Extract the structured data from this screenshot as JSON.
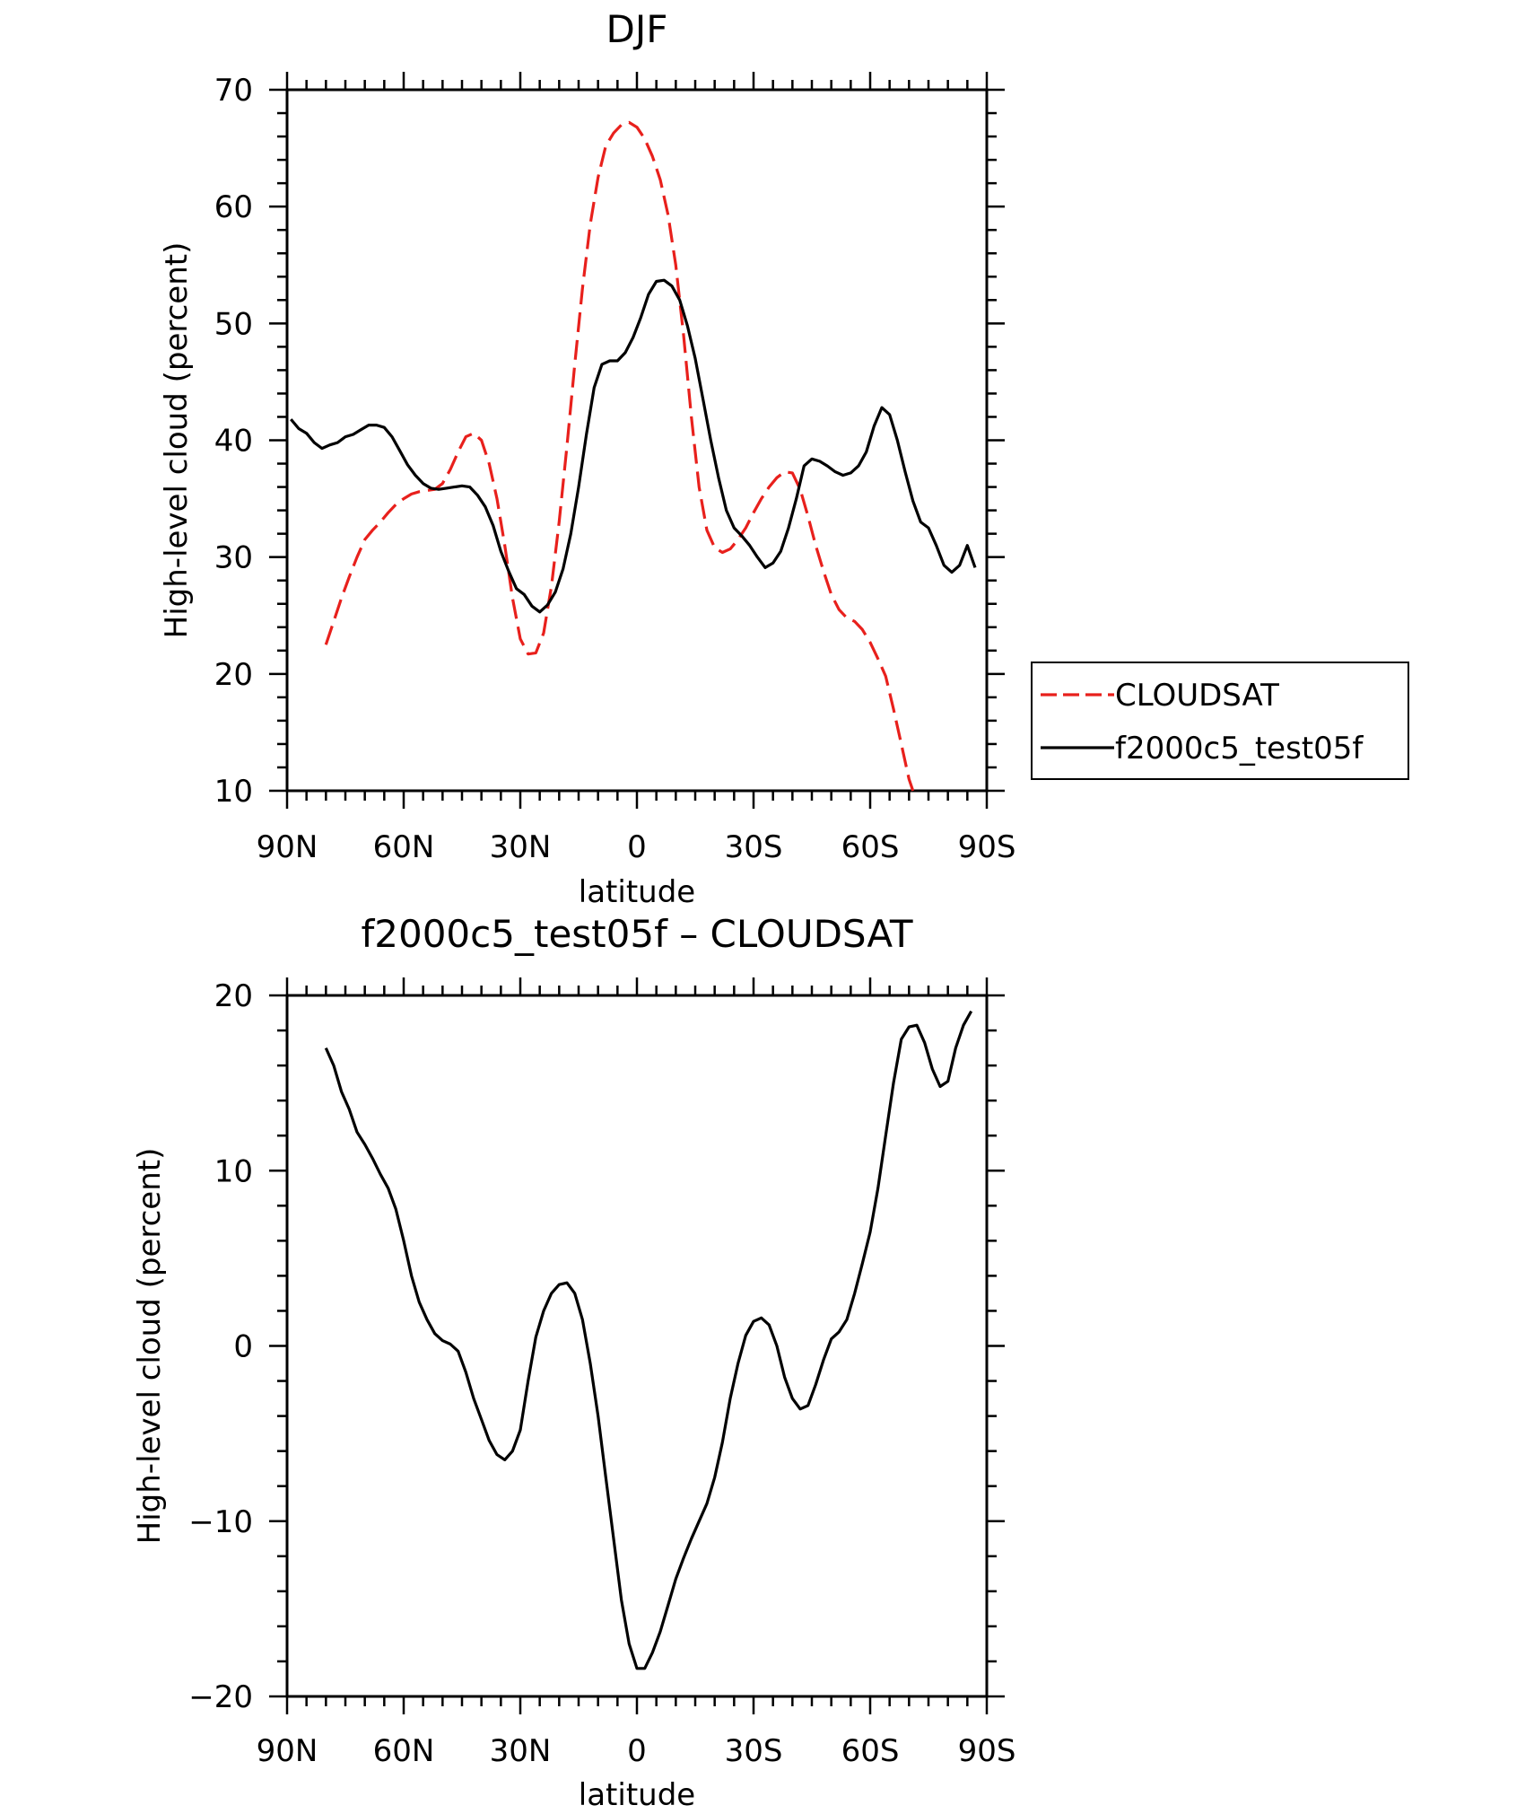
{
  "chart_data": [
    {
      "type": "line",
      "title": "DJF",
      "xlabel": "latitude",
      "ylabel": "High-level cloud (percent)",
      "xlim": [
        -90,
        90
      ],
      "ylim": [
        10,
        70
      ],
      "x_ticks": [
        {
          "value": -90,
          "label": "90N"
        },
        {
          "value": -60,
          "label": "60N"
        },
        {
          "value": -30,
          "label": "30N"
        },
        {
          "value": 0,
          "label": "0"
        },
        {
          "value": 30,
          "label": "30S"
        },
        {
          "value": 60,
          "label": "60S"
        },
        {
          "value": 90,
          "label": "90S"
        }
      ],
      "y_ticks": [
        10,
        20,
        30,
        40,
        50,
        60,
        70
      ],
      "legend": {
        "placement": "right"
      },
      "series": [
        {
          "name": "CLOUDSAT",
          "color": "#e8201c",
          "dash": "dashed",
          "points": [
            [
              -80,
              22.5
            ],
            [
              -78,
              24.5
            ],
            [
              -76,
              26.5
            ],
            [
              -74,
              28.3
            ],
            [
              -72,
              30
            ],
            [
              -70,
              31.5
            ],
            [
              -68,
              32.3
            ],
            [
              -66,
              33
            ],
            [
              -64,
              33.8
            ],
            [
              -62,
              34.5
            ],
            [
              -60,
              35
            ],
            [
              -58,
              35.4
            ],
            [
              -56,
              35.6
            ],
            [
              -54,
              35.7
            ],
            [
              -52,
              35.8
            ],
            [
              -50,
              36.3
            ],
            [
              -48,
              37.5
            ],
            [
              -46,
              39
            ],
            [
              -44,
              40.3
            ],
            [
              -42,
              40.6
            ],
            [
              -40,
              40
            ],
            [
              -38,
              38
            ],
            [
              -36,
              35
            ],
            [
              -34,
              31
            ],
            [
              -32,
              26.5
            ],
            [
              -30,
              23
            ],
            [
              -28,
              21.7
            ],
            [
              -26,
              21.8
            ],
            [
              -24,
              23.5
            ],
            [
              -22,
              27.5
            ],
            [
              -20,
              33
            ],
            [
              -18,
              39.5
            ],
            [
              -16,
              46.5
            ],
            [
              -14,
              53
            ],
            [
              -12,
              58.5
            ],
            [
              -10,
              62.5
            ],
            [
              -8,
              65.2
            ],
            [
              -6,
              66.3
            ],
            [
              -4,
              67
            ],
            [
              -2,
              67.2
            ],
            [
              0,
              66.8
            ],
            [
              2,
              65.8
            ],
            [
              4,
              64.3
            ],
            [
              6,
              62.3
            ],
            [
              8,
              59.3
            ],
            [
              10,
              55
            ],
            [
              12,
              49
            ],
            [
              14,
              42
            ],
            [
              16,
              36
            ],
            [
              18,
              32.3
            ],
            [
              20,
              30.8
            ],
            [
              22,
              30.4
            ],
            [
              24,
              30.7
            ],
            [
              26,
              31.5
            ],
            [
              28,
              32.5
            ],
            [
              30,
              33.8
            ],
            [
              32,
              35
            ],
            [
              34,
              36
            ],
            [
              36,
              36.8
            ],
            [
              38,
              37.3
            ],
            [
              40,
              37.2
            ],
            [
              42,
              35.8
            ],
            [
              44,
              33.5
            ],
            [
              46,
              31
            ],
            [
              48,
              28.8
            ],
            [
              50,
              26.8
            ],
            [
              52,
              25.5
            ],
            [
              54,
              24.8
            ],
            [
              56,
              24.5
            ],
            [
              58,
              23.8
            ],
            [
              60,
              22.7
            ],
            [
              62,
              21.3
            ],
            [
              64,
              19.8
            ],
            [
              66,
              17
            ],
            [
              68,
              14
            ],
            [
              70,
              11
            ],
            [
              71,
              10
            ]
          ]
        },
        {
          "name": "f2000c5_test05f",
          "color": "#000000",
          "dash": "solid",
          "points": [
            [
              -89,
              41.8
            ],
            [
              -87,
              41
            ],
            [
              -85,
              40.6
            ],
            [
              -83,
              39.8
            ],
            [
              -81,
              39.3
            ],
            [
              -79,
              39.6
            ],
            [
              -77,
              39.8
            ],
            [
              -75,
              40.3
            ],
            [
              -73,
              40.5
            ],
            [
              -71,
              40.9
            ],
            [
              -69,
              41.3
            ],
            [
              -67,
              41.3
            ],
            [
              -65,
              41.1
            ],
            [
              -63,
              40.3
            ],
            [
              -61,
              39.1
            ],
            [
              -59,
              37.9
            ],
            [
              -57,
              37
            ],
            [
              -55,
              36.3
            ],
            [
              -53,
              35.9
            ],
            [
              -51,
              35.8
            ],
            [
              -49,
              35.9
            ],
            [
              -47,
              36
            ],
            [
              -45,
              36.1
            ],
            [
              -43,
              36
            ],
            [
              -41,
              35.3
            ],
            [
              -39,
              34.3
            ],
            [
              -37,
              32.7
            ],
            [
              -35,
              30.5
            ],
            [
              -33,
              28.8
            ],
            [
              -31,
              27.3
            ],
            [
              -29,
              26.8
            ],
            [
              -27,
              25.8
            ],
            [
              -25,
              25.3
            ],
            [
              -23,
              25.9
            ],
            [
              -21,
              27
            ],
            [
              -19,
              29
            ],
            [
              -17,
              32
            ],
            [
              -15,
              36
            ],
            [
              -13,
              40.5
            ],
            [
              -11,
              44.5
            ],
            [
              -9,
              46.5
            ],
            [
              -7,
              46.8
            ],
            [
              -5,
              46.8
            ],
            [
              -3,
              47.5
            ],
            [
              -1,
              48.8
            ],
            [
              1,
              50.5
            ],
            [
              3,
              52.5
            ],
            [
              5,
              53.6
            ],
            [
              7,
              53.7
            ],
            [
              9,
              53.2
            ],
            [
              11,
              52
            ],
            [
              13,
              49.8
            ],
            [
              15,
              47
            ],
            [
              17,
              43.5
            ],
            [
              19,
              40
            ],
            [
              21,
              36.8
            ],
            [
              23,
              34
            ],
            [
              25,
              32.5
            ],
            [
              27,
              31.8
            ],
            [
              29,
              31
            ],
            [
              31,
              30
            ],
            [
              33,
              29.1
            ],
            [
              35,
              29.5
            ],
            [
              37,
              30.5
            ],
            [
              39,
              32.5
            ],
            [
              41,
              35
            ],
            [
              43,
              37.8
            ],
            [
              45,
              38.4
            ],
            [
              47,
              38.2
            ],
            [
              49,
              37.8
            ],
            [
              51,
              37.3
            ],
            [
              53,
              37
            ],
            [
              55,
              37.2
            ],
            [
              57,
              37.8
            ],
            [
              59,
              39
            ],
            [
              61,
              41.2
            ],
            [
              63,
              42.8
            ],
            [
              65,
              42.2
            ],
            [
              67,
              40
            ],
            [
              69,
              37.3
            ],
            [
              71,
              34.8
            ],
            [
              73,
              33
            ],
            [
              75,
              32.5
            ],
            [
              77,
              31
            ],
            [
              79,
              29.3
            ],
            [
              81,
              28.7
            ],
            [
              83,
              29.3
            ],
            [
              85,
              31
            ],
            [
              87,
              29.1
            ]
          ]
        }
      ]
    },
    {
      "type": "line",
      "title": "f2000c5_test05f – CLOUDSAT",
      "xlabel": "latitude",
      "ylabel": "High-level cloud (percent)",
      "xlim": [
        -90,
        90
      ],
      "ylim": [
        -20,
        20
      ],
      "x_ticks": [
        {
          "value": -90,
          "label": "90N"
        },
        {
          "value": -60,
          "label": "60N"
        },
        {
          "value": -30,
          "label": "30N"
        },
        {
          "value": 0,
          "label": "0"
        },
        {
          "value": 30,
          "label": "30S"
        },
        {
          "value": 60,
          "label": "60S"
        },
        {
          "value": 90,
          "label": "90S"
        }
      ],
      "y_ticks": [
        {
          "value": -20,
          "label": "−20"
        },
        {
          "value": -10,
          "label": "−10"
        },
        {
          "value": 0,
          "label": "0"
        },
        {
          "value": 10,
          "label": "10"
        },
        {
          "value": 20,
          "label": "20"
        }
      ],
      "series": [
        {
          "color": "#000000",
          "dash": "solid",
          "points": [
            [
              -80,
              17
            ],
            [
              -78,
              16
            ],
            [
              -76,
              14.5
            ],
            [
              -74,
              13.5
            ],
            [
              -72,
              12.2
            ],
            [
              -70,
              11.5
            ],
            [
              -68,
              10.7
            ],
            [
              -66,
              9.8
            ],
            [
              -64,
              9
            ],
            [
              -62,
              7.8
            ],
            [
              -60,
              6
            ],
            [
              -58,
              4
            ],
            [
              -56,
              2.5
            ],
            [
              -54,
              1.5
            ],
            [
              -52,
              0.7
            ],
            [
              -50,
              0.3
            ],
            [
              -48,
              0.1
            ],
            [
              -46,
              -0.3
            ],
            [
              -44,
              -1.5
            ],
            [
              -42,
              -3
            ],
            [
              -40,
              -4.2
            ],
            [
              -38,
              -5.4
            ],
            [
              -36,
              -6.2
            ],
            [
              -34,
              -6.5
            ],
            [
              -32,
              -6
            ],
            [
              -30,
              -4.8
            ],
            [
              -28,
              -2
            ],
            [
              -26,
              0.5
            ],
            [
              -24,
              2
            ],
            [
              -22,
              3
            ],
            [
              -20,
              3.5
            ],
            [
              -18,
              3.6
            ],
            [
              -16,
              3
            ],
            [
              -14,
              1.5
            ],
            [
              -12,
              -1
            ],
            [
              -10,
              -4
            ],
            [
              -8,
              -7.5
            ],
            [
              -6,
              -11
            ],
            [
              -4,
              -14.5
            ],
            [
              -2,
              -17
            ],
            [
              0,
              -18.4
            ],
            [
              2,
              -18.4
            ],
            [
              4,
              -17.5
            ],
            [
              6,
              -16.3
            ],
            [
              8,
              -14.8
            ],
            [
              10,
              -13.3
            ],
            [
              12,
              -12.1
            ],
            [
              14,
              -11
            ],
            [
              16,
              -10
            ],
            [
              18,
              -9
            ],
            [
              20,
              -7.5
            ],
            [
              22,
              -5.5
            ],
            [
              24,
              -3
            ],
            [
              26,
              -1
            ],
            [
              28,
              0.6
            ],
            [
              30,
              1.4
            ],
            [
              32,
              1.6
            ],
            [
              34,
              1.2
            ],
            [
              36,
              0
            ],
            [
              38,
              -1.8
            ],
            [
              40,
              -3
            ],
            [
              42,
              -3.6
            ],
            [
              44,
              -3.4
            ],
            [
              46,
              -2.2
            ],
            [
              48,
              -0.8
            ],
            [
              50,
              0.4
            ],
            [
              52,
              0.8
            ],
            [
              54,
              1.5
            ],
            [
              56,
              3
            ],
            [
              58,
              4.7
            ],
            [
              60,
              6.5
            ],
            [
              62,
              9
            ],
            [
              64,
              12
            ],
            [
              66,
              15
            ],
            [
              68,
              17.5
            ],
            [
              70,
              18.2
            ],
            [
              72,
              18.3
            ],
            [
              74,
              17.3
            ],
            [
              76,
              15.8
            ],
            [
              78,
              14.8
            ],
            [
              80,
              15.1
            ],
            [
              82,
              17
            ],
            [
              84,
              18.3
            ],
            [
              86,
              19.1
            ]
          ]
        }
      ]
    }
  ]
}
